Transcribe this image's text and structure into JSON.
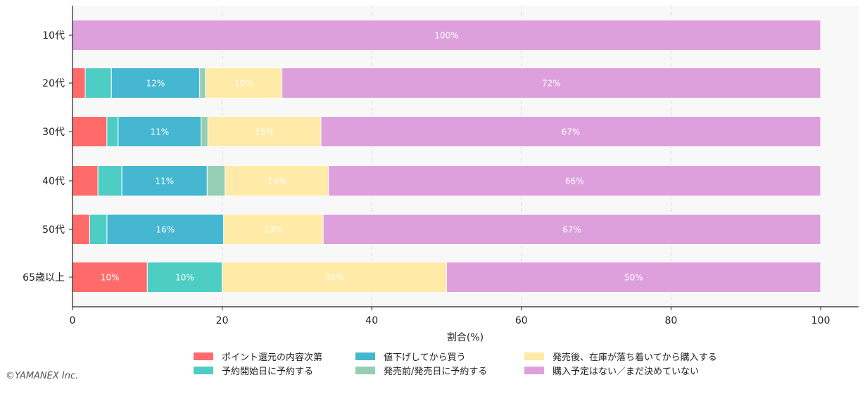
{
  "chart_data": {
    "type": "bar",
    "orientation": "horizontal",
    "stacked": true,
    "xlabel": "割合(%)",
    "ylabel": "",
    "xlim": [
      0,
      100
    ],
    "xticks": [
      0,
      20,
      40,
      60,
      80,
      100
    ],
    "grid": "vertical dashed",
    "legend_position": "bottom",
    "categories": [
      "10代",
      "20代",
      "30代",
      "40代",
      "50代",
      "65歳以上"
    ],
    "series": [
      {
        "name": "ポイント還元の内容次第",
        "color": "#ff6b6b",
        "values": [
          0,
          1.7,
          4.6,
          3.4,
          2.3,
          10
        ]
      },
      {
        "name": "予約開始日に予約する",
        "color": "#4ecdc4",
        "values": [
          0,
          3.5,
          1.5,
          3.2,
          2.3,
          10
        ]
      },
      {
        "name": "値下げしてから買う",
        "color": "#45b7d1",
        "values": [
          0,
          11.8,
          11.1,
          11.4,
          15.6,
          0
        ]
      },
      {
        "name": "発売前/発売日に予約する",
        "color": "#96ceb4",
        "values": [
          0,
          0.8,
          0.9,
          2.4,
          0,
          0
        ]
      },
      {
        "name": "発売後、在庫が落ち着いてから購入する",
        "color": "#ffeaa7",
        "values": [
          0,
          10.2,
          15.1,
          13.8,
          13.3,
          30
        ]
      },
      {
        "name": "購入予定はない／まだ決めていない",
        "color": "#dda0dd",
        "values": [
          100,
          72.0,
          66.8,
          65.8,
          66.5,
          50
        ]
      }
    ],
    "data_labels": [
      [
        "",
        "",
        "",
        "",
        "",
        "100%"
      ],
      [
        "",
        "",
        "12%",
        "",
        "10%",
        "72%"
      ],
      [
        "",
        "",
        "11%",
        "",
        "15%",
        "67%"
      ],
      [
        "",
        "",
        "11%",
        "",
        "14%",
        "66%"
      ],
      [
        "",
        "",
        "16%",
        "",
        "13%",
        "67%"
      ],
      [
        "10%",
        "10%",
        "",
        "",
        "30%",
        "50%"
      ]
    ]
  },
  "copyright": "©YAMANEX Inc."
}
